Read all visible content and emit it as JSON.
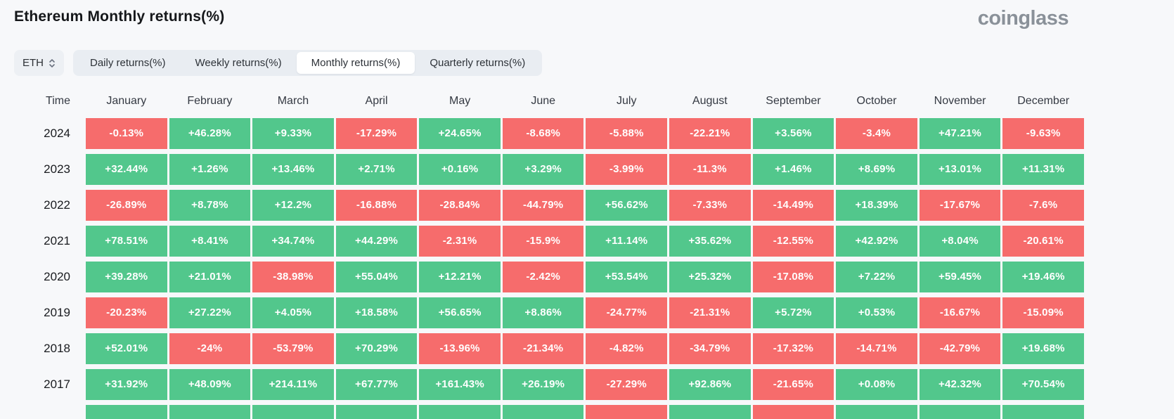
{
  "page": {
    "title": "Ethereum Monthly returns(%)",
    "brand": "coinglass"
  },
  "controls": {
    "symbol": "ETH",
    "tabs": [
      {
        "label": "Daily returns(%)",
        "active": false
      },
      {
        "label": "Weekly returns(%)",
        "active": false
      },
      {
        "label": "Monthly returns(%)",
        "active": true
      },
      {
        "label": "Quarterly returns(%)",
        "active": false
      }
    ]
  },
  "colors": {
    "positive_cell": "#52c78c",
    "negative_cell": "#f66c6c",
    "page_background": "#f7f8fa",
    "tab_group_background": "#e9edf2",
    "active_tab_background": "#ffffff",
    "brand_text": "#8a9199"
  },
  "chart_data": {
    "type": "heatmap",
    "title": "Ethereum Monthly returns(%)",
    "row_label_header": "Time",
    "columns": [
      "January",
      "February",
      "March",
      "April",
      "May",
      "June",
      "July",
      "August",
      "September",
      "October",
      "November",
      "December"
    ],
    "rows": [
      {
        "year": "2024",
        "values": [
          "-0.13%",
          "+46.28%",
          "+9.33%",
          "-17.29%",
          "+24.65%",
          "-8.68%",
          "-5.88%",
          "-22.21%",
          "+3.56%",
          "-3.4%",
          "+47.21%",
          "-9.63%"
        ]
      },
      {
        "year": "2023",
        "values": [
          "+32.44%",
          "+1.26%",
          "+13.46%",
          "+2.71%",
          "+0.16%",
          "+3.29%",
          "-3.99%",
          "-11.3%",
          "+1.46%",
          "+8.69%",
          "+13.01%",
          "+11.31%"
        ]
      },
      {
        "year": "2022",
        "values": [
          "-26.89%",
          "+8.78%",
          "+12.2%",
          "-16.88%",
          "-28.84%",
          "-44.79%",
          "+56.62%",
          "-7.33%",
          "-14.49%",
          "+18.39%",
          "-17.67%",
          "-7.6%"
        ]
      },
      {
        "year": "2021",
        "values": [
          "+78.51%",
          "+8.41%",
          "+34.74%",
          "+44.29%",
          "-2.31%",
          "-15.9%",
          "+11.14%",
          "+35.62%",
          "-12.55%",
          "+42.92%",
          "+8.04%",
          "-20.61%"
        ]
      },
      {
        "year": "2020",
        "values": [
          "+39.28%",
          "+21.01%",
          "-38.98%",
          "+55.04%",
          "+12.21%",
          "-2.42%",
          "+53.54%",
          "+25.32%",
          "-17.08%",
          "+7.22%",
          "+59.45%",
          "+19.46%"
        ]
      },
      {
        "year": "2019",
        "values": [
          "-20.23%",
          "+27.22%",
          "+4.05%",
          "+18.58%",
          "+56.65%",
          "+8.86%",
          "-24.77%",
          "-21.31%",
          "+5.72%",
          "+0.53%",
          "-16.67%",
          "-15.09%"
        ]
      },
      {
        "year": "2018",
        "values": [
          "+52.01%",
          "-24%",
          "-53.79%",
          "+70.29%",
          "-13.96%",
          "-21.34%",
          "-4.82%",
          "-34.79%",
          "-17.32%",
          "-14.71%",
          "-42.79%",
          "+19.68%"
        ]
      },
      {
        "year": "2017",
        "values": [
          "+31.92%",
          "+48.09%",
          "+214.11%",
          "+67.77%",
          "+161.43%",
          "+26.19%",
          "-27.29%",
          "+92.86%",
          "-21.65%",
          "+0.08%",
          "+42.32%",
          "+70.54%"
        ]
      }
    ],
    "partial_next_row_signs": [
      "+",
      "+",
      "+",
      "+",
      "+",
      "+",
      "-",
      "+",
      "-",
      "+",
      "+",
      "+"
    ]
  }
}
